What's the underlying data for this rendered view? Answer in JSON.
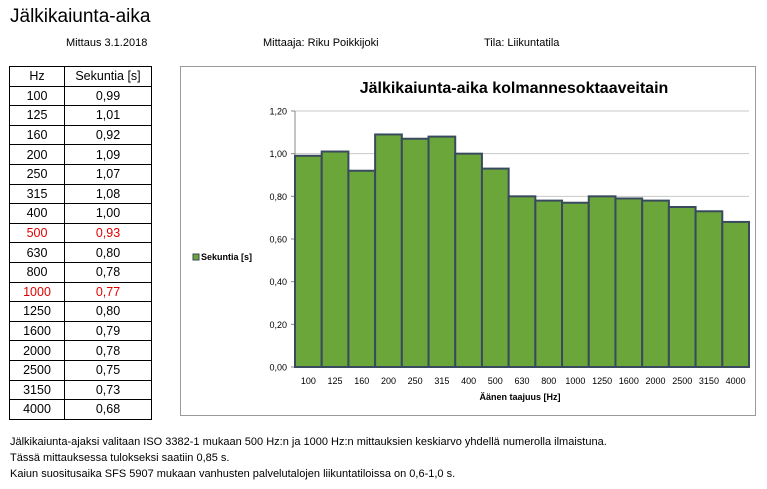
{
  "header": {
    "title": "Jälkikaiunta-aika",
    "date": "Mittaus 3.1.2018",
    "measurer": "Mittaaja: Riku Poikkijoki",
    "space": "Tila: Liikuntatila"
  },
  "table": {
    "headers": [
      "Hz",
      "Sekuntia [s]"
    ],
    "rows": [
      {
        "hz": "100",
        "sec": "0,99",
        "highlight": false
      },
      {
        "hz": "125",
        "sec": "1,01",
        "highlight": false
      },
      {
        "hz": "160",
        "sec": "0,92",
        "highlight": false
      },
      {
        "hz": "200",
        "sec": "1,09",
        "highlight": false
      },
      {
        "hz": "250",
        "sec": "1,07",
        "highlight": false
      },
      {
        "hz": "315",
        "sec": "1,08",
        "highlight": false
      },
      {
        "hz": "400",
        "sec": "1,00",
        "highlight": false
      },
      {
        "hz": "500",
        "sec": "0,93",
        "highlight": true
      },
      {
        "hz": "630",
        "sec": "0,80",
        "highlight": false
      },
      {
        "hz": "800",
        "sec": "0,78",
        "highlight": false
      },
      {
        "hz": "1000",
        "sec": "0,77",
        "highlight": true
      },
      {
        "hz": "1250",
        "sec": "0,80",
        "highlight": false
      },
      {
        "hz": "1600",
        "sec": "0,79",
        "highlight": false
      },
      {
        "hz": "2000",
        "sec": "0,78",
        "highlight": false
      },
      {
        "hz": "2500",
        "sec": "0,75",
        "highlight": false
      },
      {
        "hz": "3150",
        "sec": "0,73",
        "highlight": false
      },
      {
        "hz": "4000",
        "sec": "0,68",
        "highlight": false
      }
    ],
    "highlight_color": "#e00000"
  },
  "chart_data": {
    "type": "bar",
    "title": "Jälkikaiunta-aika kolmannesoktaaveitain",
    "xlabel": "Äänen taajuus [Hz]",
    "ylabel": "",
    "categories": [
      "100",
      "125",
      "160",
      "200",
      "250",
      "315",
      "400",
      "500",
      "630",
      "800",
      "1000",
      "1250",
      "1600",
      "2000",
      "2500",
      "3150",
      "4000"
    ],
    "series": [
      {
        "name": "Sekuntia [s]",
        "values": [
          0.99,
          1.01,
          0.92,
          1.09,
          1.07,
          1.08,
          1.0,
          0.93,
          0.8,
          0.78,
          0.77,
          0.8,
          0.79,
          0.78,
          0.75,
          0.73,
          0.68
        ]
      }
    ],
    "ylim": [
      0,
      1.2
    ],
    "yticks": [
      "0,00",
      "0,20",
      "0,40",
      "0,60",
      "0,80",
      "1,00",
      "1,20"
    ],
    "grid": true,
    "legend_position": "left",
    "bar_color": "#6aa63a",
    "bar_edge_color": "#3a4a5e"
  },
  "notes": [
    "Jälkikaiunta-ajaksi valitaan ISO 3382-1 mukaan 500 Hz:n ja 1000 Hz:n mittauksien keskiarvo yhdellä numerolla ilmaistuna.",
    "Tässä mittauksessa tulokseksi saatiin  0,85 s.",
    "Kaiun suositusaika SFS 5907 mukaan vanhusten palvelutalojen liikuntatiloissa on 0,6-1,0 s."
  ]
}
